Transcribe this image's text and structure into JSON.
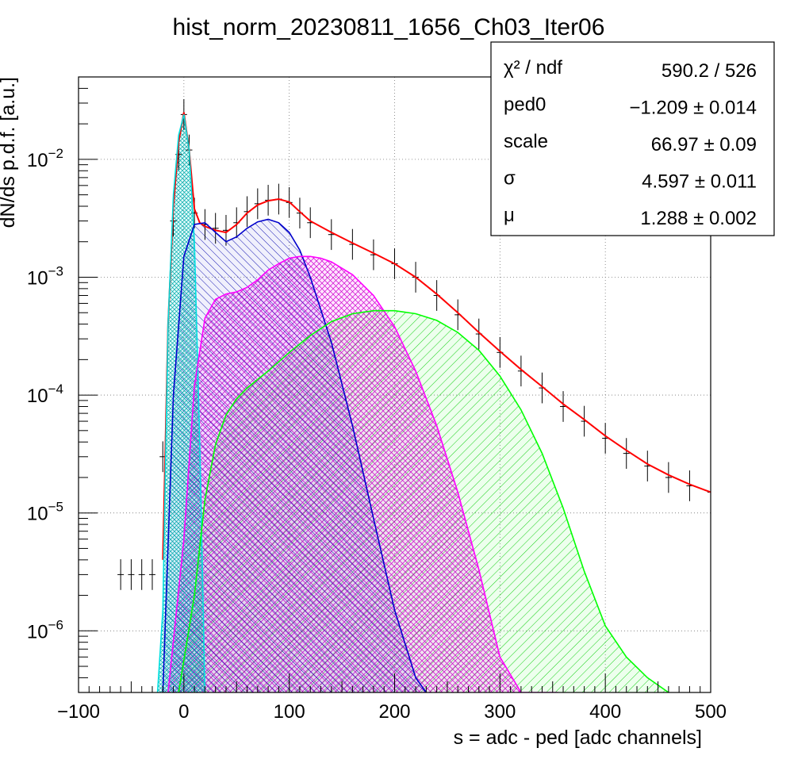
{
  "chart_data": {
    "type": "line",
    "title": "hist_norm_20230811_1656_Ch03_Iter06",
    "xlabel": "s = adc - ped [adc channels]",
    "ylabel": "dN/ds p.d.f. [a.u.]",
    "xlim": [
      -100,
      500
    ],
    "ylim": [
      3e-07,
      0.05
    ],
    "y_scale": "log",
    "grid": true,
    "x_ticks": [
      -100,
      0,
      100,
      200,
      300,
      400,
      500
    ],
    "x_tick_labels": [
      "−100",
      "0",
      "100",
      "200",
      "300",
      "400",
      "500"
    ],
    "y_ticks": [
      1e-06,
      1e-05,
      0.0001,
      0.001,
      0.01
    ],
    "y_tick_labels": [
      {
        "base": "10",
        "exp": "−6"
      },
      {
        "base": "10",
        "exp": "−5"
      },
      {
        "base": "10",
        "exp": "−4"
      },
      {
        "base": "10",
        "exp": "−3"
      },
      {
        "base": "10",
        "exp": "−2"
      }
    ],
    "stats_box": [
      {
        "label": "χ² / ndf",
        "value": "590.2 / 526"
      },
      {
        "label": "ped0",
        "value": "−1.209 ± 0.014"
      },
      {
        "label": "scale",
        "value": "66.97 ± 0.09"
      },
      {
        "label": "σ",
        "value": "4.597 ± 0.011"
      },
      {
        "label": "μ",
        "value": "1.288 ± 0.002"
      }
    ],
    "series": [
      {
        "role": "data",
        "color": "#000000",
        "x": [
          -60,
          -50,
          -40,
          -30,
          -20,
          -10,
          -5,
          0,
          5,
          10,
          20,
          30,
          40,
          50,
          60,
          70,
          80,
          90,
          100,
          110,
          120,
          140,
          160,
          180,
          200,
          220,
          240,
          260,
          280,
          300,
          320,
          340,
          360,
          380,
          400,
          420,
          440,
          460,
          480,
          500
        ],
        "y": [
          3e-06,
          3e-06,
          3e-06,
          3e-06,
          3e-05,
          0.003,
          0.011,
          0.024,
          0.012,
          0.0035,
          0.0028,
          0.0026,
          0.0025,
          0.0029,
          0.0036,
          0.0042,
          0.0045,
          0.0046,
          0.0043,
          0.0035,
          0.0029,
          0.0023,
          0.0019,
          0.00155,
          0.0013,
          0.001,
          0.0007,
          0.00048,
          0.00033,
          0.00023,
          0.00016,
          0.000115,
          8e-05,
          6e-05,
          4.3e-05,
          3.2e-05,
          2.5e-05,
          2e-05,
          1.7e-05,
          1.5e-05
        ]
      },
      {
        "role": "total fit",
        "color": "#ff0000",
        "x": [
          -20,
          -15,
          -10,
          -5,
          0,
          5,
          10,
          15,
          20,
          30,
          40,
          50,
          60,
          70,
          80,
          90,
          100,
          110,
          120,
          140,
          160,
          180,
          200,
          220,
          240,
          260,
          280,
          300,
          320,
          340,
          360,
          380,
          400,
          420,
          440,
          460,
          480,
          500
        ],
        "y": [
          4e-06,
          0.0004,
          0.004,
          0.014,
          0.025,
          0.012,
          0.0038,
          0.0029,
          0.0027,
          0.0025,
          0.0024,
          0.0028,
          0.0035,
          0.0041,
          0.00445,
          0.0046,
          0.00435,
          0.0036,
          0.003,
          0.0024,
          0.00195,
          0.0016,
          0.0013,
          0.001,
          0.00072,
          0.0005,
          0.00034,
          0.000235,
          0.000165,
          0.000118,
          8.4e-05,
          6.2e-05,
          4.5e-05,
          3.4e-05,
          2.6e-05,
          2.1e-05,
          1.75e-05,
          1.5e-05
        ]
      },
      {
        "role": "pedestal (n=0)",
        "color": "#00e0e0",
        "hatch": "cross",
        "x": [
          -25,
          -20,
          -15,
          -10,
          -5,
          0,
          5,
          10,
          15,
          20
        ],
        "y": [
          3e-07,
          1.5e-06,
          0.0004,
          0.005,
          0.016,
          0.024,
          0.012,
          0.002,
          4e-05,
          3e-07
        ]
      },
      {
        "role": "1 p.e.",
        "color": "#0000cc",
        "hatch": "back",
        "x": [
          -20,
          -10,
          0,
          10,
          20,
          30,
          40,
          50,
          60,
          70,
          80,
          90,
          100,
          110,
          120,
          140,
          160,
          180,
          200,
          220,
          230
        ],
        "y": [
          3e-07,
          0.0001,
          0.0015,
          0.0028,
          0.0029,
          0.0024,
          0.002,
          0.0022,
          0.0026,
          0.00295,
          0.0031,
          0.0029,
          0.0024,
          0.0017,
          0.001,
          0.00028,
          5.5e-05,
          9e-06,
          1.5e-06,
          4e-07,
          3e-07
        ]
      },
      {
        "role": "2 p.e.",
        "color": "#ff00ff",
        "hatch": "cross",
        "x": [
          -15,
          0,
          10,
          20,
          30,
          40,
          50,
          60,
          70,
          80,
          90,
          100,
          110,
          120,
          130,
          140,
          160,
          180,
          200,
          220,
          240,
          260,
          280,
          300,
          320,
          340,
          355
        ],
        "y": [
          3e-07,
          6e-06,
          0.00012,
          0.00045,
          0.00065,
          0.00072,
          0.00075,
          0.00082,
          0.00095,
          0.00115,
          0.0013,
          0.00145,
          0.0015,
          0.0015,
          0.00145,
          0.00135,
          0.00105,
          0.0007,
          0.00038,
          0.00016,
          5.5e-05,
          1.5e-05,
          3.3e-06,
          6e-07,
          3e-07,
          3e-07,
          3e-07
        ]
      },
      {
        "role": "3 p.e.",
        "color": "#00ff00",
        "hatch": "fwd",
        "x": [
          -5,
          10,
          20,
          30,
          40,
          50,
          60,
          80,
          100,
          120,
          140,
          160,
          180,
          200,
          220,
          240,
          260,
          280,
          300,
          320,
          340,
          360,
          380,
          400,
          420,
          440,
          460
        ],
        "y": [
          3e-07,
          2e-06,
          1.3e-05,
          3.8e-05,
          6.8e-05,
          9.3e-05,
          0.000115,
          0.00016,
          0.00023,
          0.00032,
          0.00042,
          0.00049,
          0.00052,
          0.00052,
          0.00049,
          0.00043,
          0.00034,
          0.00024,
          0.000145,
          7.5e-05,
          3.2e-05,
          1.1e-05,
          3.2e-06,
          1.1e-06,
          6e-07,
          4e-07,
          3e-07
        ]
      }
    ]
  }
}
